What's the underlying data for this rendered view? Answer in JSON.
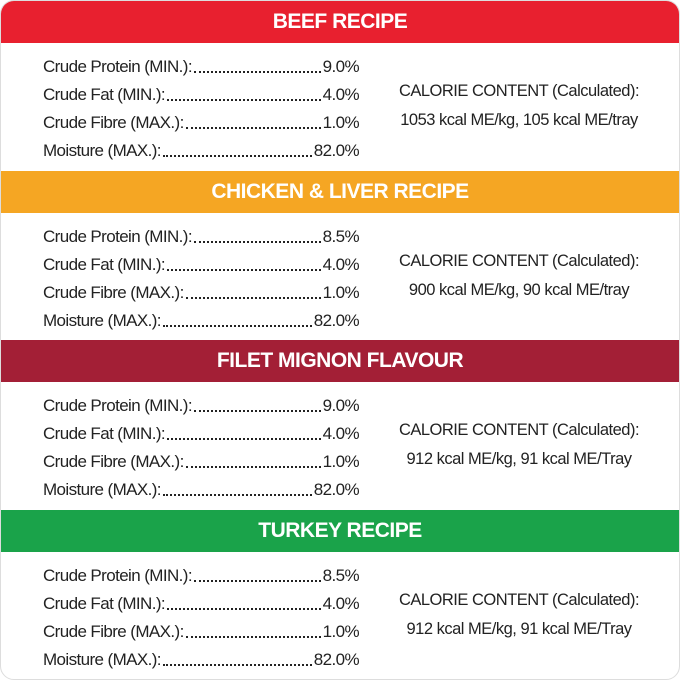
{
  "sections": [
    {
      "title": "BEEF RECIPE",
      "color": "#e8202f",
      "rows": [
        [
          "Crude Protein (MIN.):",
          "9.0%"
        ],
        [
          "Crude Fat (MIN.):",
          "4.0%"
        ],
        [
          "Crude Fibre (MAX.):",
          "1.0%"
        ],
        [
          "Moisture (MAX.):",
          "82.0%"
        ]
      ],
      "calorie_heading": "CALORIE CONTENT (Calculated):",
      "calorie_text": "1053 kcal ME/kg, 105 kcal ME/tray"
    },
    {
      "title": "CHICKEN & LIVER RECIPE",
      "color": "#f5a623",
      "rows": [
        [
          "Crude Protein (MIN.):",
          "8.5%"
        ],
        [
          "Crude Fat (MIN.):",
          "4.0%"
        ],
        [
          "Crude Fibre (MAX.):",
          "1.0%"
        ],
        [
          "Moisture (MAX.):",
          "82.0%"
        ]
      ],
      "calorie_heading": "CALORIE CONTENT (Calculated):",
      "calorie_text": "900 kcal ME/kg, 90 kcal ME/tray"
    },
    {
      "title": "FILET MIGNON FLAVOUR",
      "color": "#a31f36",
      "rows": [
        [
          "Crude Protein (MIN.):",
          "9.0%"
        ],
        [
          "Crude Fat (MIN.):",
          "4.0%"
        ],
        [
          "Crude Fibre (MAX.):",
          "1.0%"
        ],
        [
          "Moisture (MAX.):",
          "82.0%"
        ]
      ],
      "calorie_heading": "CALORIE CONTENT (Calculated):",
      "calorie_text": "912 kcal ME/kg, 91 kcal ME/Tray"
    },
    {
      "title": "TURKEY RECIPE",
      "color": "#1aa34a",
      "rows": [
        [
          "Crude Protein (MIN.):",
          "8.5%"
        ],
        [
          "Crude Fat (MIN.):",
          "4.0%"
        ],
        [
          "Crude Fibre (MAX.):",
          "1.0%"
        ],
        [
          "Moisture (MAX.):",
          "82.0%"
        ]
      ],
      "calorie_heading": "CALORIE CONTENT (Calculated):",
      "calorie_text": "912 kcal ME/kg, 91 kcal ME/Tray"
    }
  ]
}
